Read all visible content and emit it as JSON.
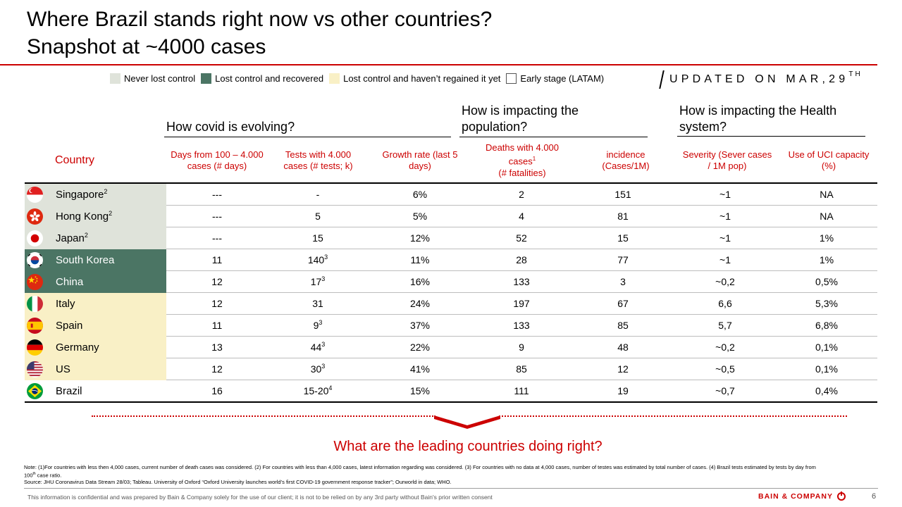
{
  "title": {
    "line1": "Where Brazil stands right now vs other countries?",
    "line2": "Snapshot at ~4000 cases"
  },
  "legend": [
    {
      "label": "Never lost control",
      "color": "#dfe3da"
    },
    {
      "label": "Lost control and recovered",
      "color": "#4b7564"
    },
    {
      "label": "Lost control and haven’t regained it yet",
      "color": "#f9f0c6"
    },
    {
      "label": "Early stage (LATAM)",
      "color": "#ffffff"
    }
  ],
  "updated": {
    "text": "UPDATED ON MAR,29",
    "sup": "TH"
  },
  "groups": {
    "evolving": "How covid is evolving?",
    "population_line1": "How is impacting the",
    "population_line2": "population?",
    "health_line1": "How is impacting the Health",
    "health_line2": "system?"
  },
  "columns": {
    "country": "Country",
    "days": "Days from 100 – 4.000 cases (# days)",
    "tests": "Tests with 4.000 cases (# tests; k)",
    "growth": "Growth rate (last 5 days)",
    "deaths_line1": "Deaths with 4.000",
    "deaths_line2": "cases",
    "deaths_sup": "1",
    "deaths_line3": "(# fatalities)",
    "incidence": "incidence (Cases/1M)",
    "severity": "Severity (Sever cases / 1M pop)",
    "uci": "Use of UCI capacity (%)"
  },
  "rows": [
    {
      "country": "Singapore",
      "sup": "2",
      "status": "never",
      "flag": "singapore-flag",
      "days": "---",
      "tests": "-",
      "tests_sup": "",
      "growth": "6%",
      "deaths": "2",
      "incidence": "151",
      "severity": "~1",
      "uci": "NA"
    },
    {
      "country": "Hong Kong",
      "sup": "2",
      "status": "never",
      "flag": "hong-kong-flag",
      "days": "---",
      "tests": "5",
      "tests_sup": "",
      "growth": "5%",
      "deaths": "4",
      "incidence": "81",
      "severity": "~1",
      "uci": "NA"
    },
    {
      "country": "Japan",
      "sup": "2",
      "status": "never",
      "flag": "japan-flag",
      "days": "---",
      "tests": "15",
      "tests_sup": "",
      "growth": "12%",
      "deaths": "52",
      "incidence": "15",
      "severity": "~1",
      "uci": "1%"
    },
    {
      "country": "South Korea",
      "sup": "",
      "status": "recovered",
      "flag": "south-korea-flag",
      "days": "11",
      "tests": "140",
      "tests_sup": "3",
      "growth": "11%",
      "deaths": "28",
      "incidence": "77",
      "severity": "~1",
      "uci": "1%"
    },
    {
      "country": "China",
      "sup": "",
      "status": "recovered",
      "flag": "china-flag",
      "days": "12",
      "tests": "17",
      "tests_sup": "3",
      "growth": "16%",
      "deaths": "133",
      "incidence": "3",
      "severity": "~0,2",
      "uci": "0,5%"
    },
    {
      "country": "Italy",
      "sup": "",
      "status": "lost",
      "flag": "italy-flag",
      "days": "12",
      "tests": "31",
      "tests_sup": "",
      "growth": "24%",
      "deaths": "197",
      "incidence": "67",
      "severity": "6,6",
      "uci": "5,3%"
    },
    {
      "country": "Spain",
      "sup": "",
      "status": "lost",
      "flag": "spain-flag",
      "days": "11",
      "tests": "9",
      "tests_sup": "3",
      "growth": "37%",
      "deaths": "133",
      "incidence": "85",
      "severity": "5,7",
      "uci": "6,8%"
    },
    {
      "country": "Germany",
      "sup": "",
      "status": "lost",
      "flag": "germany-flag",
      "days": "13",
      "tests": "44",
      "tests_sup": "3",
      "growth": "22%",
      "deaths": "9",
      "incidence": "48",
      "severity": "~0,2",
      "uci": "0,1%"
    },
    {
      "country": "US",
      "sup": "",
      "status": "lost",
      "flag": "us-flag",
      "days": "12",
      "tests": "30",
      "tests_sup": "3",
      "growth": "41%",
      "deaths": "85",
      "incidence": "12",
      "severity": "~0,5",
      "uci": "0,1%"
    },
    {
      "country": "Brazil",
      "sup": "",
      "status": "early",
      "flag": "brazil-flag",
      "days": "16",
      "tests": "15-20",
      "tests_sup": "4",
      "growth": "15%",
      "deaths": "111",
      "incidence": "19",
      "severity": "~0,7",
      "uci": "0,4%"
    }
  ],
  "question": "What are the leading countries doing right?",
  "note": {
    "line1": "Note: (1)For countries with less then 4,000 cases, current number of death cases was considered. (2) For countries with less than 4,000 cases, latest information regarding was considered. (3) For countries with no data at 4,000 cases, number of testes was estimated by total number of cases. (4) Brazil tests estimated by tests by day from",
    "line2_pre": "100",
    "line2_sup": "th",
    "line2_post": " case ratio.",
    "source": "Source: JHU Coronavirus Data Stream 28/03; Tableau. University of Oxford “Oxford University launches world’s first COVID-19 government response tracker”; Ourworld in data; WHO."
  },
  "footer": {
    "confidential": "This information is confidential and was prepared by Bain & Company solely for the use of our client; it is not to be relied on by any 3rd party without Bain's prior written consent",
    "logo": "BAIN & COMPANY",
    "page": "6"
  },
  "colors": {
    "accent": "#cc0000",
    "never": "#dfe3da",
    "recovered": "#4b7564",
    "lost": "#f9f0c6",
    "early": "#ffffff"
  }
}
